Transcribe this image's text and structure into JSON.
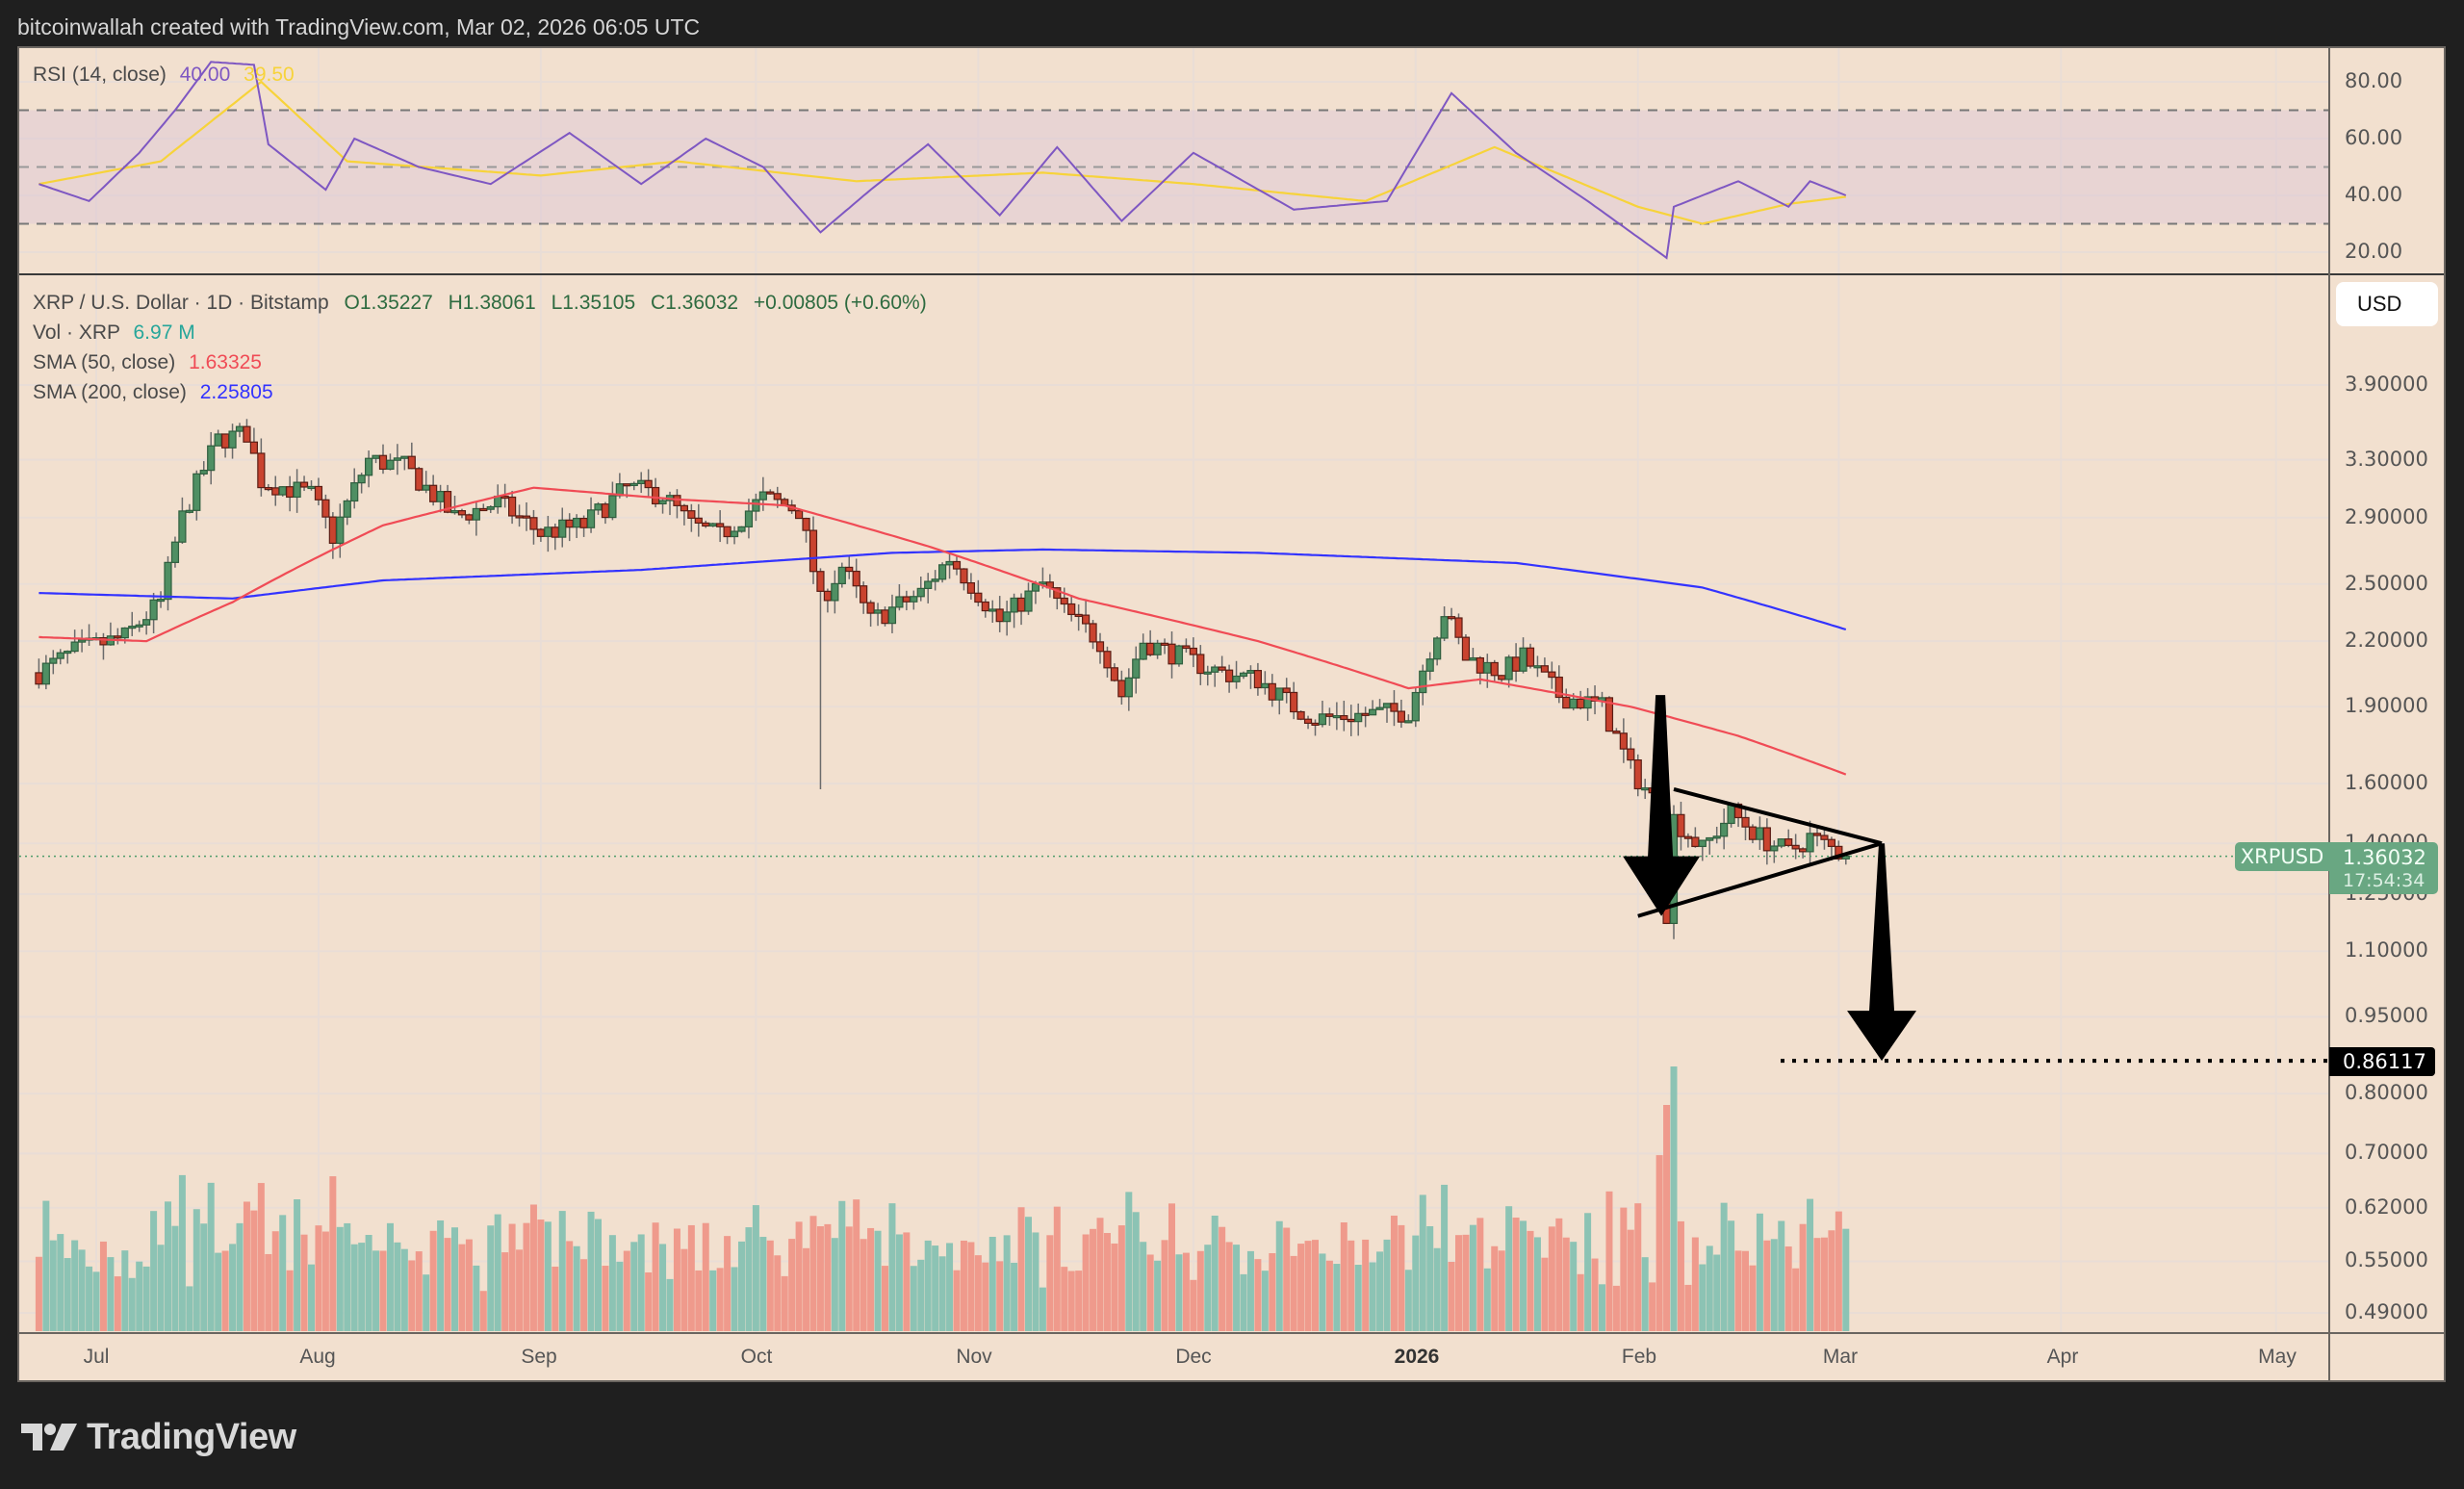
{
  "header": {
    "attribution": "bitcoinwallah created with TradingView.com, Mar 02, 2026 06:05 UTC"
  },
  "rsi": {
    "label": "RSI (14, close)",
    "value": "40.00",
    "ma_value": "39.50",
    "axis": [
      "80.00",
      "60.00",
      "40.00",
      "20.00"
    ],
    "colors": {
      "rsi": "#7e57c2",
      "ma": "#f7d33a"
    }
  },
  "legend": {
    "symbol": "XRP / U.S. Dollar · 1D · Bitstamp",
    "open": "O1.35227",
    "high": "H1.38061",
    "low": "L1.35105",
    "close": "C1.36032",
    "change": "+0.00805 (+0.60%)",
    "vol_label": "Vol · XRP",
    "vol_value": "6.97 M",
    "sma50_label": "SMA (50, close)",
    "sma50_value": "1.63325",
    "sma200_label": "SMA (200, close)",
    "sma200_value": "2.25805"
  },
  "currency_button": "USD",
  "price_axis": [
    "3.90000",
    "3.30000",
    "2.90000",
    "2.50000",
    "2.20000",
    "1.90000",
    "1.60000",
    "1.40000",
    "1.25000",
    "1.10000",
    "0.95000",
    "0.80000",
    "0.70000",
    "0.62000",
    "0.55000",
    "0.49000"
  ],
  "last_price": {
    "symbol": "XRPUSD",
    "price": "1.36032",
    "countdown": "17:54:34",
    "color": "#69a782"
  },
  "target": {
    "price": "0.86117"
  },
  "time_axis": [
    {
      "label": "Jul",
      "bold": false
    },
    {
      "label": "Aug",
      "bold": false
    },
    {
      "label": "Sep",
      "bold": false
    },
    {
      "label": "Oct",
      "bold": false
    },
    {
      "label": "Nov",
      "bold": false
    },
    {
      "label": "Dec",
      "bold": false
    },
    {
      "label": "2026",
      "bold": true
    },
    {
      "label": "Feb",
      "bold": false
    },
    {
      "label": "Mar",
      "bold": false
    },
    {
      "label": "Apr",
      "bold": false
    },
    {
      "label": "May",
      "bold": false
    }
  ],
  "footer": {
    "brand": "TradingView"
  },
  "colors": {
    "up": "#4f8f63",
    "down": "#c9432f",
    "vol_up": "#8cc3b4",
    "vol_down": "#ef9a8c",
    "sma50": "#f04b55",
    "sma200": "#3333ff",
    "background": "#f2e0cf"
  },
  "chart_data": {
    "type": "candlestick",
    "title": "XRP / U.S. Dollar · 1D · Bitstamp",
    "scale": "log",
    "ylim": [
      0.49,
      3.9
    ],
    "ylabel": "USD",
    "x_ticks": [
      "Jul",
      "Aug",
      "Sep",
      "Oct",
      "Nov",
      "Dec",
      "2026",
      "Feb",
      "Mar",
      "Apr",
      "May"
    ],
    "price_path": [
      {
        "date": "2025-06-23",
        "close": 2.05
      },
      {
        "date": "2025-06-28",
        "close": 2.15
      },
      {
        "date": "2025-07-05",
        "close": 2.22
      },
      {
        "date": "2025-07-10",
        "close": 2.4
      },
      {
        "date": "2025-07-13",
        "close": 2.9
      },
      {
        "date": "2025-07-18",
        "close": 3.45
      },
      {
        "date": "2025-07-22",
        "close": 3.5
      },
      {
        "date": "2025-07-24",
        "close": 3.15
      },
      {
        "date": "2025-07-31",
        "close": 3.05
      },
      {
        "date": "2025-08-03",
        "close": 2.78
      },
      {
        "date": "2025-08-08",
        "close": 3.3
      },
      {
        "date": "2025-08-13",
        "close": 3.25
      },
      {
        "date": "2025-08-20",
        "close": 2.9
      },
      {
        "date": "2025-08-26",
        "close": 3.0
      },
      {
        "date": "2025-09-01",
        "close": 2.8
      },
      {
        "date": "2025-09-07",
        "close": 2.85
      },
      {
        "date": "2025-09-13",
        "close": 3.1
      },
      {
        "date": "2025-09-18",
        "close": 3.05
      },
      {
        "date": "2025-09-22",
        "close": 2.85
      },
      {
        "date": "2025-09-26",
        "close": 2.78
      },
      {
        "date": "2025-10-02",
        "close": 3.03
      },
      {
        "date": "2025-10-07",
        "close": 2.95
      },
      {
        "date": "2025-10-10",
        "close": 2.4
      },
      {
        "date": "2025-10-13",
        "close": 2.6
      },
      {
        "date": "2025-10-17",
        "close": 2.3
      },
      {
        "date": "2025-10-24",
        "close": 2.45
      },
      {
        "date": "2025-10-28",
        "close": 2.65
      },
      {
        "date": "2025-11-04",
        "close": 2.3
      },
      {
        "date": "2025-11-10",
        "close": 2.5
      },
      {
        "date": "2025-11-13",
        "close": 2.35
      },
      {
        "date": "2025-11-18",
        "close": 2.2
      },
      {
        "date": "2025-11-21",
        "close": 1.95
      },
      {
        "date": "2025-11-24",
        "close": 2.2
      },
      {
        "date": "2025-12-01",
        "close": 2.1
      },
      {
        "date": "2025-12-05",
        "close": 2.05
      },
      {
        "date": "2025-12-10",
        "close": 2.02
      },
      {
        "date": "2025-12-15",
        "close": 1.9
      },
      {
        "date": "2025-12-18",
        "close": 1.85
      },
      {
        "date": "2025-12-26",
        "close": 1.87
      },
      {
        "date": "2025-12-31",
        "close": 1.88
      },
      {
        "date": "2026-01-05",
        "close": 2.35
      },
      {
        "date": "2026-01-08",
        "close": 2.12
      },
      {
        "date": "2026-01-13",
        "close": 2.05
      },
      {
        "date": "2026-01-16",
        "close": 2.12
      },
      {
        "date": "2026-01-21",
        "close": 1.95
      },
      {
        "date": "2026-01-27",
        "close": 1.9
      },
      {
        "date": "2026-01-31",
        "close": 1.65
      },
      {
        "date": "2026-02-03",
        "close": 1.55
      },
      {
        "date": "2026-02-05",
        "close": 1.2
      },
      {
        "date": "2026-02-06",
        "close": 1.48
      },
      {
        "date": "2026-02-10",
        "close": 1.38
      },
      {
        "date": "2026-02-14",
        "close": 1.5
      },
      {
        "date": "2026-02-18",
        "close": 1.42
      },
      {
        "date": "2026-02-22",
        "close": 1.37
      },
      {
        "date": "2026-02-25",
        "close": 1.42
      },
      {
        "date": "2026-03-02",
        "close": 1.36032
      }
    ],
    "sma50_path": [
      {
        "date": "2025-06-23",
        "value": 2.22
      },
      {
        "date": "2025-07-08",
        "value": 2.2
      },
      {
        "date": "2025-07-20",
        "value": 2.4
      },
      {
        "date": "2025-08-10",
        "value": 2.85
      },
      {
        "date": "2025-08-31",
        "value": 3.1
      },
      {
        "date": "2025-09-20",
        "value": 3.02
      },
      {
        "date": "2025-10-05",
        "value": 2.98
      },
      {
        "date": "2025-10-25",
        "value": 2.72
      },
      {
        "date": "2025-11-15",
        "value": 2.42
      },
      {
        "date": "2025-12-10",
        "value": 2.2
      },
      {
        "date": "2025-12-31",
        "value": 1.98
      },
      {
        "date": "2026-01-10",
        "value": 2.02
      },
      {
        "date": "2026-01-31",
        "value": 1.9
      },
      {
        "date": "2026-02-15",
        "value": 1.78
      },
      {
        "date": "2026-03-02",
        "value": 1.63325
      }
    ],
    "sma200_path": [
      {
        "date": "2025-06-23",
        "value": 2.45
      },
      {
        "date": "2025-07-20",
        "value": 2.42
      },
      {
        "date": "2025-08-10",
        "value": 2.52
      },
      {
        "date": "2025-09-15",
        "value": 2.58
      },
      {
        "date": "2025-10-20",
        "value": 2.68
      },
      {
        "date": "2025-11-10",
        "value": 2.7
      },
      {
        "date": "2025-12-10",
        "value": 2.68
      },
      {
        "date": "2026-01-15",
        "value": 2.62
      },
      {
        "date": "2026-02-10",
        "value": 2.48
      },
      {
        "date": "2026-03-02",
        "value": 2.25805
      }
    ],
    "rsi_path": [
      {
        "date": "2025-06-23",
        "value": 44
      },
      {
        "date": "2025-06-30",
        "value": 38
      },
      {
        "date": "2025-07-07",
        "value": 55
      },
      {
        "date": "2025-07-12",
        "value": 70
      },
      {
        "date": "2025-07-17",
        "value": 87
      },
      {
        "date": "2025-07-23",
        "value": 86
      },
      {
        "date": "2025-07-25",
        "value": 58
      },
      {
        "date": "2025-08-02",
        "value": 42
      },
      {
        "date": "2025-08-06",
        "value": 60
      },
      {
        "date": "2025-08-15",
        "value": 50
      },
      {
        "date": "2025-08-25",
        "value": 44
      },
      {
        "date": "2025-09-05",
        "value": 62
      },
      {
        "date": "2025-09-15",
        "value": 44
      },
      {
        "date": "2025-09-24",
        "value": 60
      },
      {
        "date": "2025-10-02",
        "value": 50
      },
      {
        "date": "2025-10-10",
        "value": 27
      },
      {
        "date": "2025-10-17",
        "value": 42
      },
      {
        "date": "2025-10-25",
        "value": 58
      },
      {
        "date": "2025-11-04",
        "value": 33
      },
      {
        "date": "2025-11-12",
        "value": 57
      },
      {
        "date": "2025-11-21",
        "value": 31
      },
      {
        "date": "2025-12-01",
        "value": 55
      },
      {
        "date": "2025-12-15",
        "value": 35
      },
      {
        "date": "2025-12-28",
        "value": 38
      },
      {
        "date": "2026-01-06",
        "value": 76
      },
      {
        "date": "2026-01-15",
        "value": 55
      },
      {
        "date": "2026-01-25",
        "value": 38
      },
      {
        "date": "2026-02-05",
        "value": 18
      },
      {
        "date": "2026-02-06",
        "value": 36
      },
      {
        "date": "2026-02-15",
        "value": 45
      },
      {
        "date": "2026-02-22",
        "value": 36
      },
      {
        "date": "2026-02-25",
        "value": 45
      },
      {
        "date": "2026-03-02",
        "value": 40
      }
    ],
    "rsi_ma_path": [
      {
        "date": "2025-06-23",
        "value": 44
      },
      {
        "date": "2025-07-10",
        "value": 52
      },
      {
        "date": "2025-07-24",
        "value": 80
      },
      {
        "date": "2025-08-05",
        "value": 52
      },
      {
        "date": "2025-09-01",
        "value": 47
      },
      {
        "date": "2025-09-20",
        "value": 52
      },
      {
        "date": "2025-10-15",
        "value": 45
      },
      {
        "date": "2025-11-10",
        "value": 48
      },
      {
        "date": "2025-12-01",
        "value": 44
      },
      {
        "date": "2025-12-25",
        "value": 38
      },
      {
        "date": "2026-01-12",
        "value": 57
      },
      {
        "date": "2026-02-01",
        "value": 36
      },
      {
        "date": "2026-02-10",
        "value": 30
      },
      {
        "date": "2026-02-22",
        "value": 37
      },
      {
        "date": "2026-03-02",
        "value": 39.5
      }
    ],
    "volume_spike": {
      "date": "2026-02-06",
      "note": "largest volume bar"
    },
    "annotations": {
      "pattern": "bear pennant / symmetrical triangle",
      "flagpole_top": 1.95,
      "flagpole_bottom": 1.2,
      "triangle_upper": [
        {
          "date": "2026-02-06",
          "price": 1.58
        },
        {
          "date": "2026-03-07",
          "price": 1.4
        }
      ],
      "triangle_lower": [
        {
          "date": "2026-02-04",
          "price": 1.19
        },
        {
          "date": "2026-03-07",
          "price": 1.4
        }
      ],
      "projection_arrow": {
        "from": 1.4,
        "to": 0.86117
      },
      "target_line": 0.86117
    }
  }
}
